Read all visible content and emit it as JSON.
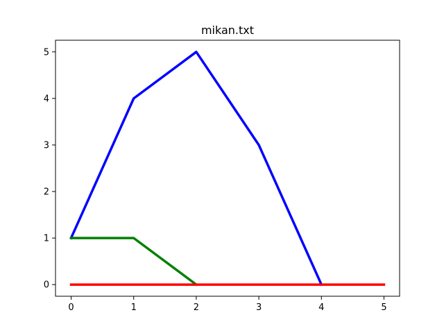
{
  "chart_data": {
    "type": "line",
    "title": "mikan.txt",
    "xlabel": "",
    "ylabel": "",
    "xlim": [
      -0.25,
      5.25
    ],
    "ylim": [
      -0.25,
      5.25
    ],
    "xticks": [
      0,
      1,
      2,
      3,
      4,
      5
    ],
    "yticks": [
      0,
      1,
      2,
      3,
      4,
      5
    ],
    "grid": false,
    "legend": "none",
    "series": [
      {
        "color": "#0000ff",
        "x": [
          0,
          1,
          2,
          3,
          4
        ],
        "y": [
          1,
          4,
          5,
          3,
          0
        ]
      },
      {
        "color": "#008000",
        "x": [
          0,
          1,
          2
        ],
        "y": [
          1,
          1,
          0
        ]
      },
      {
        "color": "#ff0000",
        "x": [
          0,
          1,
          2,
          3,
          4,
          5
        ],
        "y": [
          0,
          0,
          0,
          0,
          0,
          0
        ]
      }
    ]
  }
}
